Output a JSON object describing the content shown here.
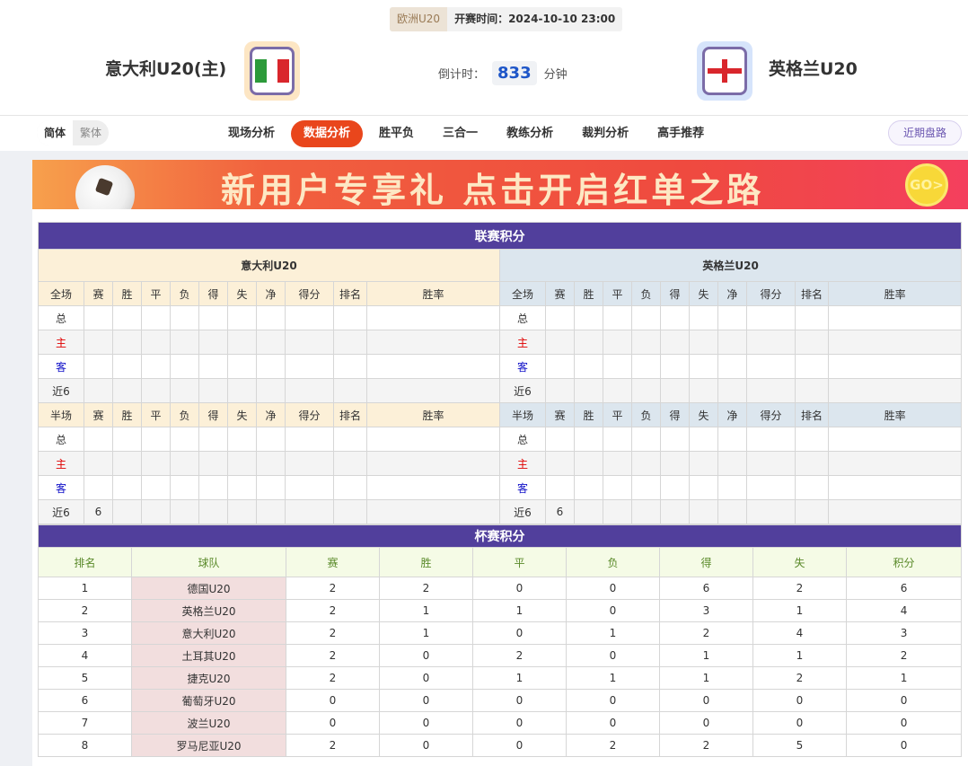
{
  "header": {
    "league": "欧洲U20",
    "kickoff": "开赛时间：2024-10-10 23:00",
    "home_team": "意大利U20(主)",
    "away_team": "英格兰U20",
    "countdown_label": "倒计时：",
    "countdown_value": "833",
    "countdown_unit": "分钟",
    "home_flag": "italy-flag",
    "away_flag": "england-flag"
  },
  "nav": {
    "lang": [
      "简体",
      "繁体"
    ],
    "tabs": [
      "现场分析",
      "数据分析",
      "胜平负",
      "三合一",
      "教练分析",
      "裁判分析",
      "高手推荐"
    ],
    "active_tab": "数据分析",
    "recent": "近期盘路"
  },
  "banner": {
    "text": "新用户专享礼 点击开启红单之路",
    "go": "GO>"
  },
  "league": {
    "title": "联赛积分",
    "home": "意大利U20",
    "away": "英格兰U20",
    "full_cols": [
      "全场",
      "赛",
      "胜",
      "平",
      "负",
      "得",
      "失",
      "净",
      "得分",
      "排名",
      "胜率"
    ],
    "half_cols": [
      "半场",
      "赛",
      "胜",
      "平",
      "负",
      "得",
      "失",
      "净",
      "得分",
      "排名",
      "胜率"
    ],
    "row_labels": [
      "总",
      "主",
      "客",
      "近6"
    ],
    "home_full": [
      [
        "",
        "",
        "",
        "",
        "",
        "",
        "",
        "",
        "",
        ""
      ],
      [
        "",
        "",
        "",
        "",
        "",
        "",
        "",
        "",
        "",
        ""
      ],
      [
        "",
        "",
        "",
        "",
        "",
        "",
        "",
        "",
        "",
        ""
      ],
      [
        "",
        "",
        "",
        "",
        "",
        "",
        "",
        "",
        "",
        ""
      ]
    ],
    "away_full": [
      [
        "",
        "",
        "",
        "",
        "",
        "",
        "",
        "",
        "",
        ""
      ],
      [
        "",
        "",
        "",
        "",
        "",
        "",
        "",
        "",
        "",
        ""
      ],
      [
        "",
        "",
        "",
        "",
        "",
        "",
        "",
        "",
        "",
        ""
      ],
      [
        "",
        "",
        "",
        "",
        "",
        "",
        "",
        "",
        "",
        ""
      ]
    ],
    "home_half": [
      [
        "",
        "",
        "",
        "",
        "",
        "",
        "",
        "",
        "",
        ""
      ],
      [
        "",
        "",
        "",
        "",
        "",
        "",
        "",
        "",
        "",
        ""
      ],
      [
        "",
        "",
        "",
        "",
        "",
        "",
        "",
        "",
        "",
        ""
      ],
      [
        "6",
        "",
        "",
        "",
        "",
        "",
        "",
        "",
        "",
        ""
      ]
    ],
    "away_half": [
      [
        "",
        "",
        "",
        "",
        "",
        "",
        "",
        "",
        "",
        ""
      ],
      [
        "",
        "",
        "",
        "",
        "",
        "",
        "",
        "",
        "",
        ""
      ],
      [
        "",
        "",
        "",
        "",
        "",
        "",
        "",
        "",
        "",
        ""
      ],
      [
        "6",
        "",
        "",
        "",
        "",
        "",
        "",
        "",
        "",
        ""
      ]
    ]
  },
  "cup": {
    "title": "杯赛积分",
    "cols": [
      "排名",
      "球队",
      "赛",
      "胜",
      "平",
      "负",
      "得",
      "失",
      "积分"
    ],
    "rows": [
      [
        "1",
        "德国U20",
        "2",
        "2",
        "0",
        "0",
        "6",
        "2",
        "6"
      ],
      [
        "2",
        "英格兰U20",
        "2",
        "1",
        "1",
        "0",
        "3",
        "1",
        "4"
      ],
      [
        "3",
        "意大利U20",
        "2",
        "1",
        "0",
        "1",
        "2",
        "4",
        "3"
      ],
      [
        "4",
        "土耳其U20",
        "2",
        "0",
        "2",
        "0",
        "1",
        "1",
        "2"
      ],
      [
        "5",
        "捷克U20",
        "2",
        "0",
        "1",
        "1",
        "1",
        "2",
        "1"
      ],
      [
        "6",
        "葡萄牙U20",
        "0",
        "0",
        "0",
        "0",
        "0",
        "0",
        "0"
      ],
      [
        "7",
        "波兰U20",
        "0",
        "0",
        "0",
        "0",
        "0",
        "0",
        "0"
      ],
      [
        "8",
        "罗马尼亚U20",
        "2",
        "0",
        "0",
        "2",
        "2",
        "5",
        "0"
      ]
    ]
  },
  "colors": {
    "accent": "#513f9c",
    "active_tab": "#e9461c",
    "home_label": "#e00000",
    "away_label": "#1010c8"
  }
}
